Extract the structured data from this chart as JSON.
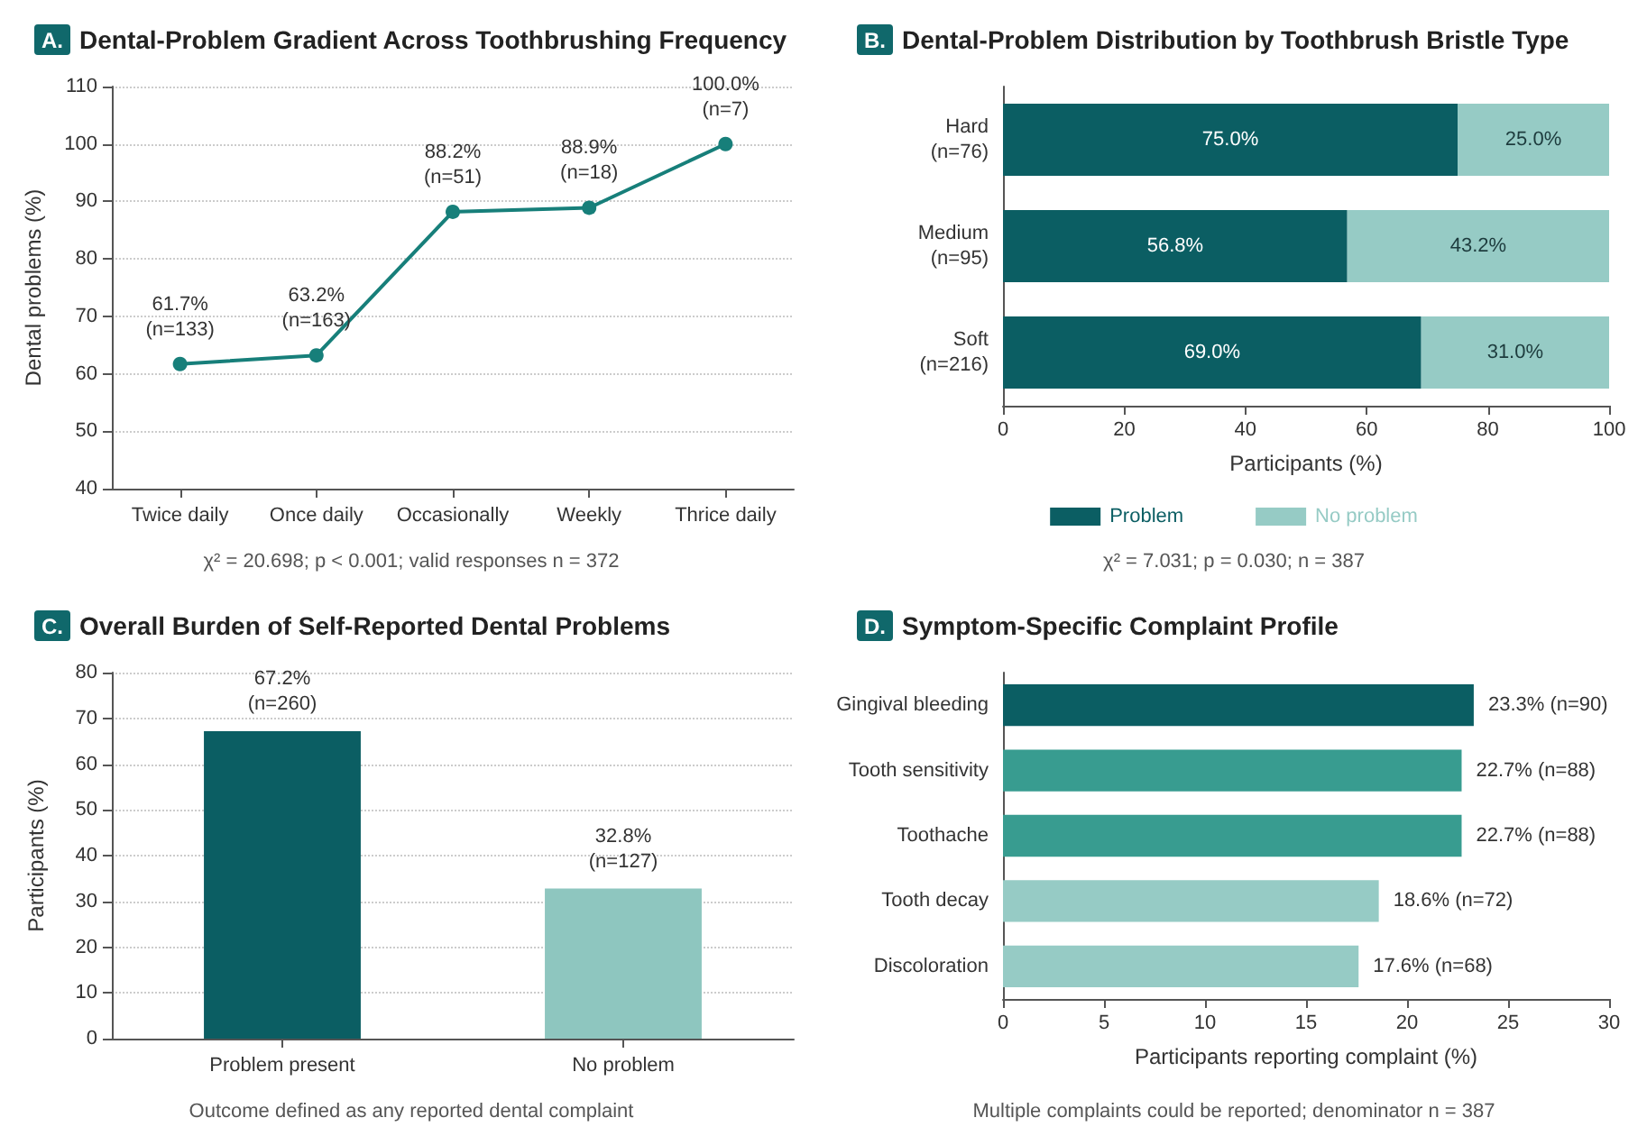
{
  "chart_data": [
    {
      "type": "line",
      "title": "A. Dental-Problem Gradient Across Toothbrushing Frequency",
      "ylabel": "Dental problems (%)",
      "categories": [
        "Twice daily",
        "Once daily",
        "Occasionally",
        "Weekly",
        "Thrice daily"
      ],
      "values": [
        61.7,
        63.2,
        88.2,
        88.9,
        100.0
      ],
      "color": "#177f7a",
      "value_labels": [
        "61.7%\n(n=133)",
        "63.2%\n(n=163)",
        "88.2%\n(n=51)",
        "88.9%\n(n=18)",
        "100.0%\n(n=7)"
      ],
      "ylim": [
        40,
        110
      ],
      "yticks": [
        40,
        50,
        60,
        70,
        80,
        90,
        100,
        110
      ],
      "grid": "y",
      "marker": "circle",
      "line_style": "solid",
      "annotations": [
        "χ² = 20.698; p < 0.001; valid responses n = 372"
      ]
    },
    {
      "type": "bar",
      "orientation": "horizontal",
      "stacked": true,
      "title": "B. Dental-Problem Distribution by Toothbrush Bristle Type",
      "xlabel": "Participants (%)",
      "categories": [
        "Hard\n(n=76)",
        "Medium\n(n=95)",
        "Soft\n(n=216)"
      ],
      "series": [
        {
          "name": "Problem",
          "color": "#0b5e63",
          "values": [
            75.0,
            56.8,
            69.0
          ],
          "value_labels": [
            "75.0%",
            "56.8%",
            "69.0%"
          ]
        },
        {
          "name": "No problem",
          "color": "#96cbc5",
          "values": [
            25.0,
            43.2,
            31.0
          ],
          "value_labels": [
            "25.0%",
            "43.2%",
            "31.0%"
          ]
        }
      ],
      "xlim": [
        0,
        100
      ],
      "xticks": [
        0,
        20,
        40,
        60,
        80,
        100
      ],
      "legend": "bottom",
      "annotations": [
        "χ² = 7.031; p = 0.030; n = 387"
      ]
    },
    {
      "type": "bar",
      "title": "C. Overall Burden of Self-Reported Dental Problems",
      "ylabel": "Participants (%)",
      "categories": [
        "Problem present",
        "No problem"
      ],
      "values": [
        67.2,
        32.8
      ],
      "colors": [
        "#0b5e63",
        "#8ec6bf"
      ],
      "value_labels": [
        "67.2%\n(n=260)",
        "32.8%\n(n=127)"
      ],
      "ylim": [
        0,
        80
      ],
      "yticks": [
        0,
        10,
        20,
        30,
        40,
        50,
        60,
        70,
        80
      ],
      "grid": "y",
      "annotations": [
        "Outcome defined as any reported dental complaint"
      ]
    },
    {
      "type": "bar",
      "orientation": "horizontal",
      "title": "D. Symptom-Specific Complaint Profile",
      "xlabel": "Participants reporting complaint (%)",
      "categories": [
        "Gingival bleeding",
        "Tooth sensitivity",
        "Toothache",
        "Tooth decay",
        "Discoloration"
      ],
      "values": [
        23.3,
        22.7,
        22.7,
        18.6,
        17.6
      ],
      "colors": [
        "#0b5e63",
        "#389c90",
        "#389c90",
        "#96cbc5",
        "#96cbc5"
      ],
      "value_labels": [
        "23.3% (n=90)",
        "22.7% (n=88)",
        "22.7% (n=88)",
        "18.6% (n=72)",
        "17.6% (n=68)"
      ],
      "xlim": [
        0,
        30
      ],
      "xticks": [
        0,
        5,
        10,
        15,
        20,
        25,
        30
      ],
      "annotations": [
        "Multiple complaints could be reported; denominator n = 387"
      ]
    }
  ]
}
